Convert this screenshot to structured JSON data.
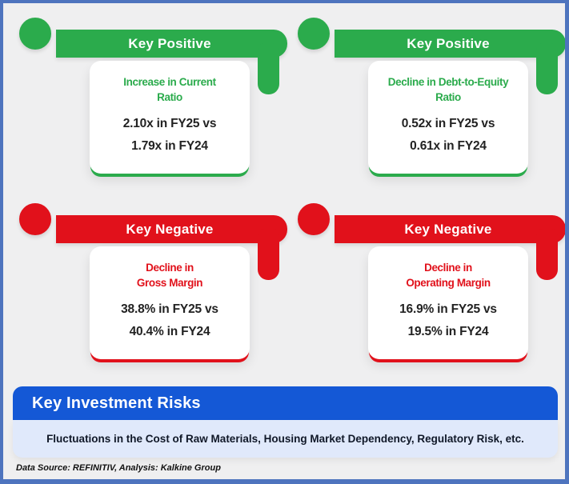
{
  "cards": [
    {
      "key_label": "Key Positive",
      "accent": "#2BAB4C",
      "title_lines": [
        "Increase in Current",
        "Ratio"
      ],
      "value_lines": [
        "2.10x in FY25 vs",
        "1.79x in FY24"
      ]
    },
    {
      "key_label": "Key Positive",
      "accent": "#2BAB4C",
      "title_lines": [
        "Decline in Debt-to-Equity",
        "Ratio"
      ],
      "value_lines": [
        "0.52x in FY25 vs",
        "0.61x in FY24"
      ]
    },
    {
      "key_label": "Key Negative",
      "accent": "#E1111B",
      "title_lines": [
        "Decline in",
        "Gross Margin"
      ],
      "value_lines": [
        "38.8% in FY25 vs",
        "40.4% in FY24"
      ]
    },
    {
      "key_label": "Key Negative",
      "accent": "#E1111B",
      "title_lines": [
        "Decline in",
        "Operating Margin"
      ],
      "value_lines": [
        "16.9% in FY25 vs",
        "19.5% in FY24"
      ]
    }
  ],
  "risks": {
    "header": "Key Investment Risks",
    "text": "Fluctuations in the Cost of Raw Materials, Housing Market Dependency, Regulatory Risk, etc."
  },
  "footer": {
    "source_note": "Data Source: REFINITIV, Analysis: Kalkine Group"
  },
  "colors": {
    "positive_green": "#2BAB4C",
    "negative_red": "#E1111B",
    "risk_header_blue": "#1458D6",
    "risk_box_bg": "#E0E9FB",
    "frame_border_blue": "#4E74BE",
    "background": "#EFEFF0"
  }
}
